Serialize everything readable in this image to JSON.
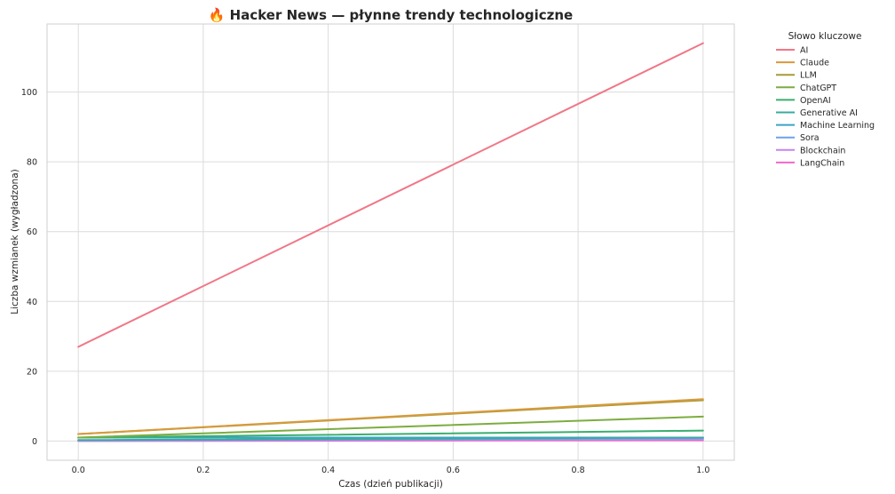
{
  "chart_data": {
    "type": "line",
    "title": "🔥 Hacker News — płynne trendy technologiczne",
    "xlabel": "Czas (dzień publikacji)",
    "ylabel": "Liczba wzmianek (wygładzona)",
    "xlim": [
      -0.05,
      1.05
    ],
    "ylim": [
      -5.5,
      119.5
    ],
    "x_ticks": [
      "0.0",
      "0.2",
      "0.4",
      "0.6",
      "0.8",
      "1.0"
    ],
    "y_ticks": [
      "0",
      "20",
      "40",
      "60",
      "80",
      "100"
    ],
    "grid": true,
    "legend_title": "Słowo kluczowe",
    "legend_position": "outside-top-right",
    "x": [
      0.0,
      1.0
    ],
    "series": [
      {
        "name": "AI",
        "color": "#f07787",
        "values": [
          27,
          114
        ]
      },
      {
        "name": "Claude",
        "color": "#d89a3c",
        "values": [
          2,
          12
        ]
      },
      {
        "name": "LLM",
        "color": "#a79a37",
        "values": [
          2,
          11.7
        ]
      },
      {
        "name": "ChatGPT",
        "color": "#7cad40",
        "values": [
          1,
          7
        ]
      },
      {
        "name": "OpenAI",
        "color": "#3aae6f",
        "values": [
          1,
          3
        ]
      },
      {
        "name": "Generative AI",
        "color": "#3aab9f",
        "values": [
          0.3,
          1
        ]
      },
      {
        "name": "Machine Learning",
        "color": "#3aa4c3",
        "values": [
          1,
          1
        ]
      },
      {
        "name": "Sora",
        "color": "#6fa0ee",
        "values": [
          0.2,
          0.8
        ]
      },
      {
        "name": "Blockchain",
        "color": "#c285ee",
        "values": [
          0.1,
          0.5
        ]
      },
      {
        "name": "LangChain",
        "color": "#f267c8",
        "values": [
          0,
          0.2
        ]
      }
    ]
  }
}
